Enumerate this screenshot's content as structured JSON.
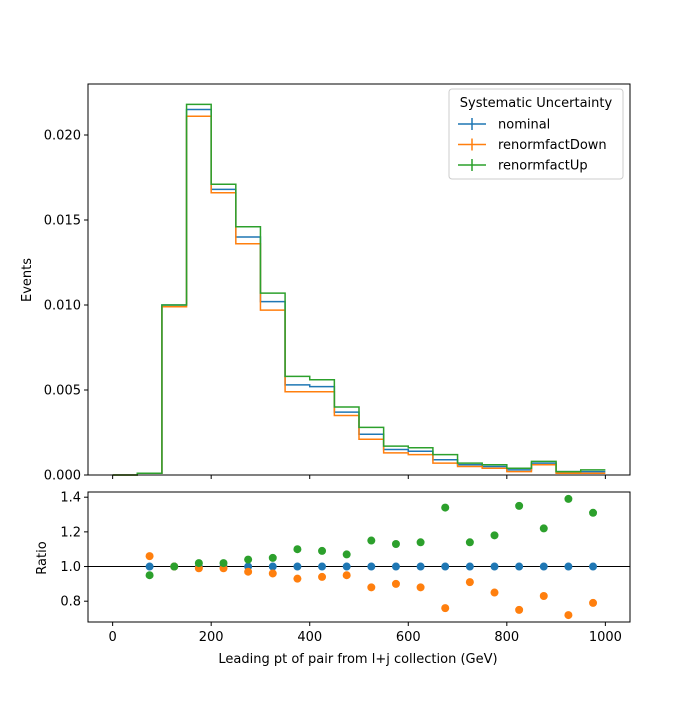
{
  "chart_data": {
    "type": "line",
    "subtype": "step-histogram-with-ratio",
    "bin_edges": [
      0,
      50,
      100,
      150,
      200,
      250,
      300,
      350,
      400,
      450,
      500,
      550,
      600,
      650,
      700,
      750,
      800,
      850,
      900,
      950,
      1000
    ],
    "series": [
      {
        "name": "nominal",
        "color": "#1f77b4",
        "values": [
          0.0,
          0.0001,
          0.01,
          0.0215,
          0.0168,
          0.014,
          0.0102,
          0.0053,
          0.0052,
          0.0037,
          0.0024,
          0.0015,
          0.0014,
          0.0009,
          0.0006,
          0.0005,
          0.0003,
          0.0007,
          0.0002,
          0.0002
        ]
      },
      {
        "name": "renormfactDown",
        "color": "#ff7f0e",
        "values": [
          0.0,
          0.0001,
          0.0099,
          0.0211,
          0.0166,
          0.0136,
          0.0097,
          0.0049,
          0.0049,
          0.0035,
          0.0021,
          0.0013,
          0.0012,
          0.0007,
          0.0005,
          0.0004,
          0.0002,
          0.0006,
          0.0001,
          0.0001
        ]
      },
      {
        "name": "renormfactUp",
        "color": "#2ca02c",
        "values": [
          0.0,
          0.0001,
          0.01,
          0.0218,
          0.0171,
          0.0146,
          0.0107,
          0.0058,
          0.0056,
          0.004,
          0.0028,
          0.0017,
          0.0016,
          0.0012,
          0.0007,
          0.0006,
          0.0004,
          0.0008,
          0.0002,
          0.0003
        ]
      }
    ],
    "ratio": {
      "x": [
        75,
        125,
        175,
        225,
        275,
        325,
        375,
        425,
        475,
        525,
        575,
        625,
        675,
        725,
        775,
        825,
        875,
        925,
        975
      ],
      "series": [
        {
          "name": "nominal",
          "color": "#1f77b4",
          "values": [
            1.0,
            1.0,
            1.0,
            1.0,
            1.0,
            1.0,
            1.0,
            1.0,
            1.0,
            1.0,
            1.0,
            1.0,
            1.0,
            1.0,
            1.0,
            1.0,
            1.0,
            1.0,
            1.0
          ]
        },
        {
          "name": "renormfactDown",
          "color": "#ff7f0e",
          "values": [
            1.06,
            1.0,
            0.99,
            0.99,
            0.97,
            0.96,
            0.93,
            0.94,
            0.95,
            0.88,
            0.9,
            0.88,
            0.76,
            0.91,
            0.85,
            0.75,
            0.83,
            0.72,
            0.79
          ]
        },
        {
          "name": "renormfactUp",
          "color": "#2ca02c",
          "values": [
            0.95,
            1.0,
            1.02,
            1.02,
            1.04,
            1.05,
            1.1,
            1.09,
            1.07,
            1.15,
            1.13,
            1.14,
            1.34,
            1.14,
            1.18,
            1.35,
            1.22,
            1.39,
            1.31
          ]
        }
      ],
      "reference_line": 1.0,
      "ylim": [
        0.68,
        1.43
      ],
      "yticks": [
        0.8,
        1.0,
        1.2,
        1.4
      ],
      "ytick_labels": [
        "0.8",
        "1.0",
        "1.2",
        "1.4"
      ],
      "ylabel": "Ratio"
    },
    "xlim": [
      -50,
      1050
    ],
    "xticks": [
      0,
      200,
      400,
      600,
      800,
      1000
    ],
    "xtick_labels": [
      "0",
      "200",
      "400",
      "600",
      "800",
      "1000"
    ],
    "xlabel": "Leading pt of pair from l+j collection (GeV)",
    "ylim": [
      0,
      0.023
    ],
    "yticks": [
      0,
      0.005,
      0.01,
      0.015,
      0.02
    ],
    "ytick_labels": [
      "0.000",
      "0.005",
      "0.010",
      "0.015",
      "0.020"
    ],
    "ylabel": "Events",
    "legend": {
      "title": "Systematic Uncertainty",
      "position": "top-right",
      "entries": [
        "nominal",
        "renormfactDown",
        "renormfactUp"
      ]
    },
    "grid": false
  }
}
